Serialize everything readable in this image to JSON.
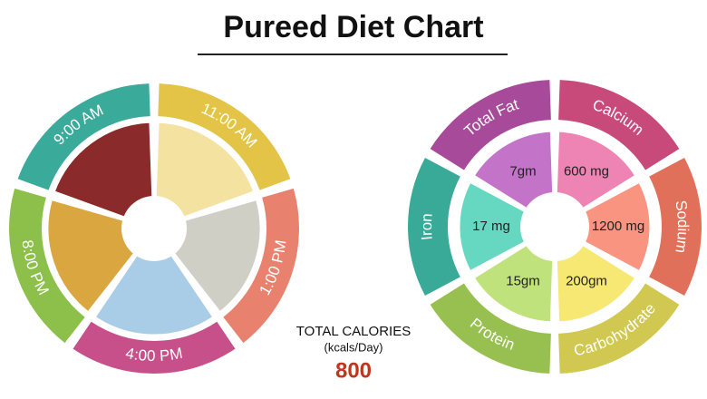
{
  "title": "Pureed Diet Chart",
  "meal_wheel": {
    "segments": [
      "9:00 AM",
      "11:00 AM",
      "1:00 PM",
      "4:00 PM",
      "8:00 PM"
    ]
  },
  "nutrient_wheel": {
    "segments": [
      {
        "label": "Total Fat",
        "value": "7gm"
      },
      {
        "label": "Calcium",
        "value": "600 mg"
      },
      {
        "label": "Sodium",
        "value": "1200 mg"
      },
      {
        "label": "Carbohydrate",
        "value": "200gm"
      },
      {
        "label": "Protein",
        "value": "15gm"
      },
      {
        "label": "Iron",
        "value": "17 mg"
      }
    ]
  },
  "calories": {
    "label": "TOTAL CALORIES",
    "unit": "(kcals/Day)",
    "value": "800"
  }
}
